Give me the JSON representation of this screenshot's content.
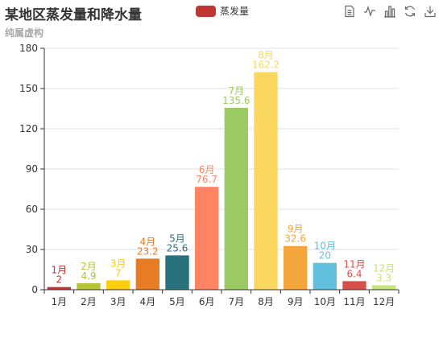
{
  "header": {
    "title": "某地区蒸发量和降水量",
    "subtitle": "纯属虚构"
  },
  "legend": {
    "label": "蒸发量",
    "color": "#c23531"
  },
  "toolbox": {
    "icons": [
      "data-view-icon",
      "line-chart-icon",
      "bar-chart-icon",
      "restore-icon",
      "save-image-icon"
    ]
  },
  "chart_data": {
    "type": "bar",
    "categories": [
      "1月",
      "2月",
      "3月",
      "4月",
      "5月",
      "6月",
      "7月",
      "8月",
      "9月",
      "10月",
      "11月",
      "12月"
    ],
    "series": [
      {
        "name": "蒸发量",
        "values": [
          2,
          4.9,
          7,
          23.2,
          25.6,
          76.7,
          135.6,
          162.2,
          32.6,
          20,
          6.4,
          3.3
        ]
      }
    ],
    "bar_colors": [
      "#c23531",
      "#b5c334",
      "#fcce10",
      "#e87c25",
      "#27727b",
      "#fe8463",
      "#9bca63",
      "#fad860",
      "#f3a43b",
      "#60c0dd",
      "#d7504b",
      "#c6e579"
    ],
    "bar_labels": [
      "1月\n2",
      "2月\n4.9",
      "3月\n7",
      "4月\n23.2",
      "5月\n25.6",
      "6月\n76.7",
      "7月\n135.6",
      "8月\n162.2",
      "9月\n32.6",
      "10月\n20",
      "11月\n6.4",
      "12月\n3.3"
    ],
    "y_ticks": [
      "0",
      "30",
      "60",
      "90",
      "120",
      "150",
      "180"
    ],
    "ylim": [
      0,
      180
    ],
    "grid": true,
    "legend_position": "top-center"
  }
}
